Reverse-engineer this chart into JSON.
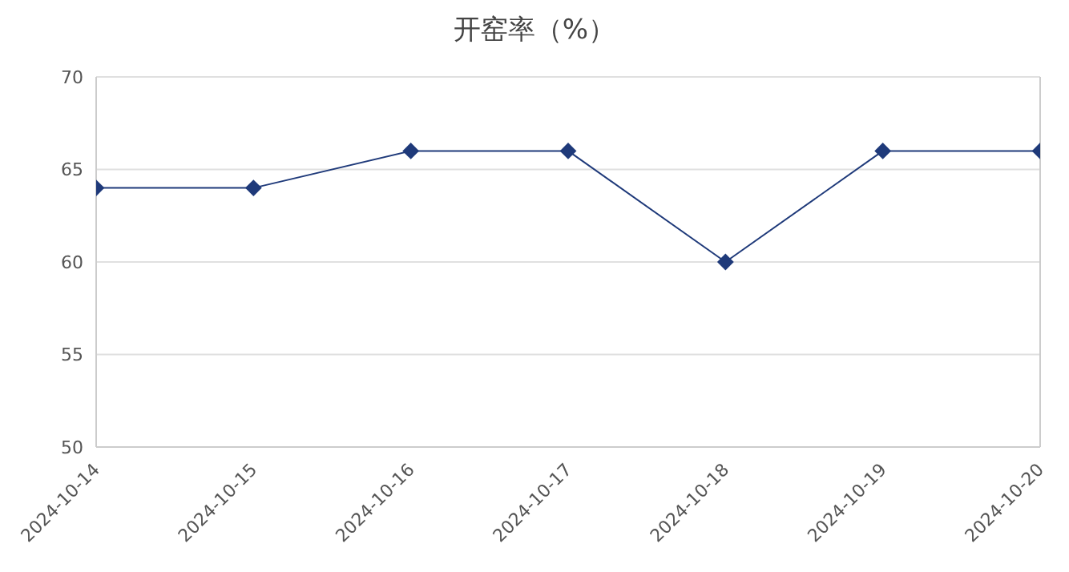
{
  "chart_data": {
    "type": "line",
    "title": "开窑率（%）",
    "categories": [
      "2024-10-14",
      "2024-10-15",
      "2024-10-16",
      "2024-10-17",
      "2024-10-18",
      "2024-10-19",
      "2024-10-20"
    ],
    "series": [
      {
        "color": "#1f3a7a",
        "values": [
          64,
          64,
          66,
          66,
          60,
          66,
          66
        ]
      }
    ],
    "ylim": [
      50,
      70
    ],
    "yticks": [
      50,
      55,
      60,
      65,
      70
    ],
    "grid": "y",
    "marker": "diamond",
    "line_style": "solid",
    "legend": false
  }
}
